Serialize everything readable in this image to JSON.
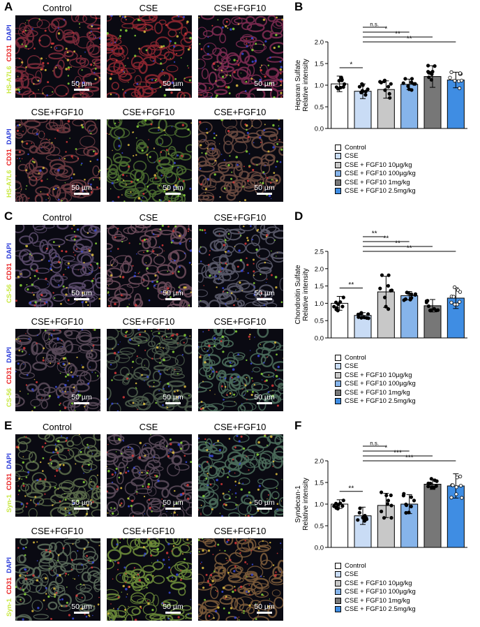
{
  "panels": {
    "A": "A",
    "B": "B",
    "C": "C",
    "D": "D",
    "E": "E",
    "F": "F"
  },
  "groups": [
    "Control",
    "CSE",
    "CSE+FGF10 10µg/kg",
    "CSE+FGF10 100µg/kg",
    "CSE+FGF10 1mg/kg",
    "CSE+FGF10 2.5mg/kg"
  ],
  "scalebar": "50 µm",
  "stains": {
    "A": [
      "HS-A7L6",
      "CD31",
      "DAPI"
    ],
    "C": [
      "CS-56",
      "CD31",
      "DAPI"
    ],
    "E": [
      "Syn-1",
      "CD31",
      "DAPI"
    ]
  },
  "legend": [
    "Control",
    "CSE",
    "CSE + FGF10 10µg/kg",
    "CSE + FGF10 100µg/kg",
    "CSE + FGF10 1mg/kg",
    "CSE + FGF10 2.5mg/kg"
  ],
  "bar_colors": [
    "#ffffff",
    "#c9dcf5",
    "#c8c8c8",
    "#86b4ea",
    "#777777",
    "#3f8de3"
  ],
  "chart_data": [
    {
      "type": "bar",
      "panel": "B",
      "ylabel": "Heparan Sulfate\nRelative intensity",
      "ylim": [
        0,
        2.0
      ],
      "yticks": [
        "0.0",
        "0.5",
        "1.0",
        "1.5",
        "2.0"
      ],
      "values": [
        1.03,
        0.86,
        0.9,
        1.02,
        1.2,
        1.12
      ],
      "errors": [
        0.18,
        0.17,
        0.2,
        0.12,
        0.25,
        0.18
      ],
      "significance": [
        {
          "from": 0,
          "to": 1,
          "label": "*"
        },
        {
          "from": 1,
          "to": 2,
          "label": "n.s."
        },
        {
          "from": 1,
          "to": 3,
          "label": "*"
        },
        {
          "from": 1,
          "to": 4,
          "label": "**"
        },
        {
          "from": 1,
          "to": 5,
          "label": "**"
        }
      ]
    },
    {
      "type": "bar",
      "panel": "D",
      "ylabel": "Chondroitin Sulfate\nRelative intensity",
      "ylim": [
        0,
        2.5
      ],
      "yticks": [
        "0.0",
        "0.5",
        "1.0",
        "1.5",
        "2.0",
        "2.5"
      ],
      "values": [
        1.0,
        0.65,
        1.33,
        1.22,
        0.93,
        1.15
      ],
      "errors": [
        0.2,
        0.08,
        0.45,
        0.12,
        0.18,
        0.3
      ],
      "significance": [
        {
          "from": 0,
          "to": 1,
          "label": "**"
        },
        {
          "from": 1,
          "to": 2,
          "label": "**"
        },
        {
          "from": 1,
          "to": 3,
          "label": "**"
        },
        {
          "from": 1,
          "to": 4,
          "label": "**"
        },
        {
          "from": 1,
          "to": 5,
          "label": "**"
        }
      ]
    },
    {
      "type": "bar",
      "panel": "F",
      "ylabel": "Syndecan-1\nRelative intensity",
      "ylim": [
        0,
        2.0
      ],
      "yticks": [
        "0.0",
        "0.5",
        "1.0",
        "1.5",
        "2.0"
      ],
      "values": [
        1.0,
        0.73,
        0.97,
        1.0,
        1.46,
        1.42
      ],
      "errors": [
        0.1,
        0.2,
        0.28,
        0.22,
        0.12,
        0.28
      ],
      "significance": [
        {
          "from": 0,
          "to": 1,
          "label": "**"
        },
        {
          "from": 1,
          "to": 2,
          "label": "n.s."
        },
        {
          "from": 1,
          "to": 3,
          "label": "*"
        },
        {
          "from": 1,
          "to": 4,
          "label": "***"
        },
        {
          "from": 1,
          "to": 5,
          "label": "***"
        }
      ]
    }
  ]
}
